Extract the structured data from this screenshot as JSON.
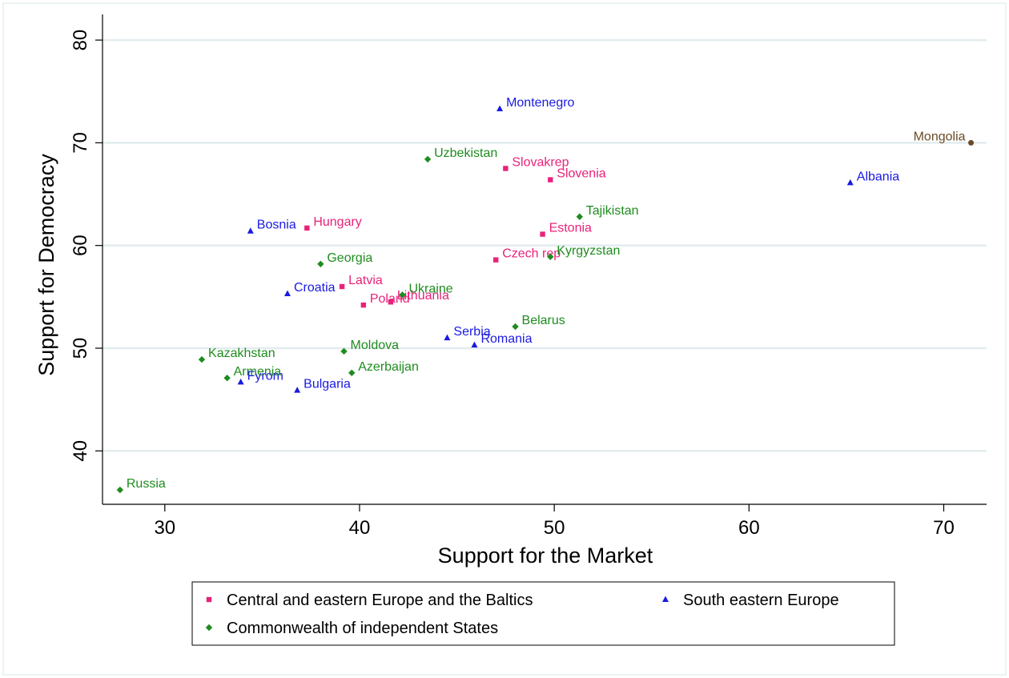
{
  "chart_data": {
    "type": "scatter",
    "xlabel": "Support for the Market",
    "ylabel": "Support for Democracy",
    "xlim": [
      26.8,
      72.2
    ],
    "ylim": [
      34.8,
      82.5
    ],
    "xticks": [
      30,
      40,
      50,
      60,
      70
    ],
    "yticks": [
      40,
      50,
      60,
      70,
      80
    ],
    "grid": "horizontal",
    "legend_position": "bottom",
    "colors": {
      "cee": "#e8227a",
      "see": "#1a1ae0",
      "cis": "#1e8c1e",
      "other": "#6b4a26",
      "grid": "#e2ecef"
    },
    "series": [
      {
        "name": "Central and eastern Europe and the Baltics",
        "key": "cee",
        "marker": "square",
        "points": [
          {
            "label": "Hungary",
            "x": 37.3,
            "y": 61.7
          },
          {
            "label": "Latvia",
            "x": 39.1,
            "y": 56.0
          },
          {
            "label": "Poland",
            "x": 40.2,
            "y": 54.2
          },
          {
            "label": "Lithuania",
            "x": 41.6,
            "y": 54.5
          },
          {
            "label": "Slovakrep",
            "x": 47.5,
            "y": 67.5
          },
          {
            "label": "Slovenia",
            "x": 49.8,
            "y": 66.4
          },
          {
            "label": "Estonia",
            "x": 49.4,
            "y": 61.1
          },
          {
            "label": "Czech rep",
            "x": 47.0,
            "y": 58.6
          }
        ]
      },
      {
        "name": "South eastern Europe",
        "key": "see",
        "marker": "triangle",
        "points": [
          {
            "label": "Montenegro",
            "x": 47.2,
            "y": 73.3
          },
          {
            "label": "Albania",
            "x": 65.2,
            "y": 66.1
          },
          {
            "label": "Bosnia",
            "x": 34.4,
            "y": 61.4
          },
          {
            "label": "Croatia",
            "x": 36.3,
            "y": 55.3
          },
          {
            "label": "Serbia",
            "x": 44.5,
            "y": 51.0
          },
          {
            "label": "Romania",
            "x": 45.9,
            "y": 50.3
          },
          {
            "label": "Fyrom",
            "x": 33.9,
            "y": 46.7
          },
          {
            "label": "Bulgaria",
            "x": 36.8,
            "y": 45.9
          }
        ]
      },
      {
        "name": "Commonwealth of independent States",
        "key": "cis",
        "marker": "diamond",
        "points": [
          {
            "label": "Uzbekistan",
            "x": 43.5,
            "y": 68.4
          },
          {
            "label": "Tajikistan",
            "x": 51.3,
            "y": 62.8
          },
          {
            "label": "Georgia",
            "x": 38.0,
            "y": 58.2
          },
          {
            "label": "Kyrgyzstan",
            "x": 49.8,
            "y": 58.9
          },
          {
            "label": "Ukraine",
            "x": 42.2,
            "y": 55.2
          },
          {
            "label": "Belarus",
            "x": 48.0,
            "y": 52.1
          },
          {
            "label": "Moldova",
            "x": 39.2,
            "y": 49.7
          },
          {
            "label": "Kazakhstan",
            "x": 31.9,
            "y": 48.9
          },
          {
            "label": "Armenia",
            "x": 33.2,
            "y": 47.1
          },
          {
            "label": "Azerbaijan",
            "x": 39.6,
            "y": 47.6
          },
          {
            "label": "Russia",
            "x": 27.7,
            "y": 36.2
          }
        ]
      },
      {
        "key": "other",
        "marker": "circle",
        "in_legend": false,
        "points": [
          {
            "label": "Mongolia",
            "x": 71.4,
            "y": 70.0,
            "label_side": "left"
          }
        ]
      }
    ],
    "legend": [
      {
        "label": "Central and eastern Europe and the Baltics",
        "key": "cee",
        "marker": "square"
      },
      {
        "label": "South eastern Europe",
        "key": "see",
        "marker": "triangle"
      },
      {
        "label": "Commonwealth of independent States",
        "key": "cis",
        "marker": "diamond"
      }
    ]
  }
}
